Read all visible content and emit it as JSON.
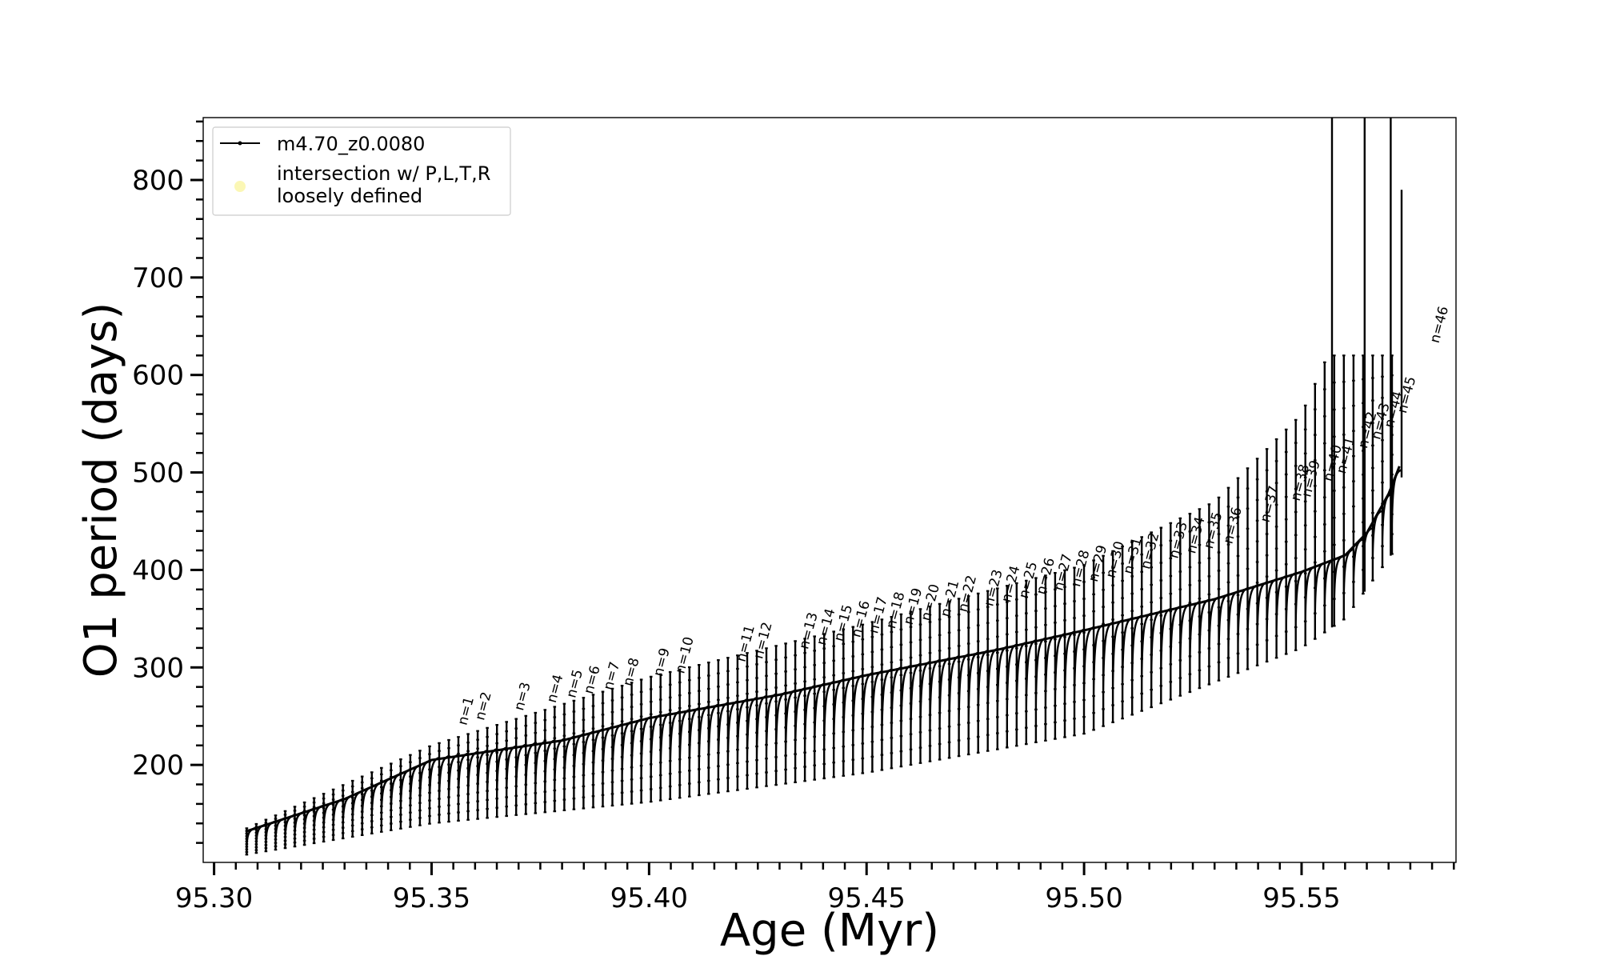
{
  "chart_data": {
    "type": "line",
    "title": "",
    "xlabel": "Age (Myr)",
    "ylabel": "O1 period (days)",
    "xlim": [
      95.2975,
      95.5855
    ],
    "ylim": [
      100,
      864
    ],
    "x_ticks": [
      "95.30",
      "95.35",
      "95.40",
      "95.45",
      "95.50",
      "95.55"
    ],
    "x_tick_values": [
      95.3,
      95.35,
      95.4,
      95.45,
      95.5,
      95.55
    ],
    "x_minor_step": 0.005,
    "y_ticks": [
      "200",
      "300",
      "400",
      "500",
      "600",
      "700",
      "800"
    ],
    "y_tick_values": [
      200,
      300,
      400,
      500,
      600,
      700,
      800
    ],
    "y_minor_step": 20,
    "grid": false,
    "legend": {
      "position": "top-left",
      "entries": [
        {
          "label": "m4.70_z0.0080",
          "marker": "line-with-dot",
          "color": "#000000"
        },
        {
          "label_lines": [
            "intersection w/ P,L,T,R",
            "loosely defined"
          ],
          "marker": "circle",
          "color": "#fbf7b5"
        }
      ]
    },
    "series": [
      {
        "name": "m4.70_z0.0080",
        "color": "#000000",
        "x_start": 95.3075,
        "x_end": 95.573,
        "base_points": [
          {
            "x": 95.3075,
            "y": 132
          },
          {
            "x": 95.33,
            "y": 165
          },
          {
            "x": 95.35,
            "y": 205
          },
          {
            "x": 95.38,
            "y": 225
          },
          {
            "x": 95.4,
            "y": 248
          },
          {
            "x": 95.43,
            "y": 272
          },
          {
            "x": 95.45,
            "y": 292
          },
          {
            "x": 95.48,
            "y": 318
          },
          {
            "x": 95.5,
            "y": 338
          },
          {
            "x": 95.53,
            "y": 370
          },
          {
            "x": 95.55,
            "y": 398
          },
          {
            "x": 95.56,
            "y": 415
          },
          {
            "x": 95.565,
            "y": 438
          },
          {
            "x": 95.57,
            "y": 478
          },
          {
            "x": 95.573,
            "y": 512
          }
        ],
        "trough_points": [
          {
            "x": 95.3075,
            "y": 108
          },
          {
            "x": 95.35,
            "y": 140
          },
          {
            "x": 95.4,
            "y": 162
          },
          {
            "x": 95.45,
            "y": 192
          },
          {
            "x": 95.5,
            "y": 232
          },
          {
            "x": 95.55,
            "y": 320
          },
          {
            "x": 95.56,
            "y": 350
          },
          {
            "x": 95.573,
            "y": 430
          }
        ],
        "peak_points": [
          {
            "x": 95.3075,
            "y": 135
          },
          {
            "x": 95.35,
            "y": 220
          },
          {
            "x": 95.4,
            "y": 290
          },
          {
            "x": 95.45,
            "y": 345
          },
          {
            "x": 95.5,
            "y": 405
          },
          {
            "x": 95.53,
            "y": 470
          },
          {
            "x": 95.55,
            "y": 560
          },
          {
            "x": 95.556,
            "y": 620
          }
        ],
        "pulse_count": 120,
        "off_scale_spikes": [
          {
            "x": 95.557,
            "y": 864
          },
          {
            "x": 95.5645,
            "y": 864
          },
          {
            "x": 95.5705,
            "y": 864
          }
        ],
        "end_spike": {
          "x": 95.573,
          "y_from": 495,
          "y_to": 790
        }
      }
    ],
    "annotations": [
      {
        "text": "n=1",
        "x": 95.358,
        "y": 240
      },
      {
        "text": "n=2",
        "x": 95.362,
        "y": 245
      },
      {
        "text": "n=3",
        "x": 95.371,
        "y": 255
      },
      {
        "text": "n=4",
        "x": 95.3785,
        "y": 263
      },
      {
        "text": "n=5",
        "x": 95.383,
        "y": 268
      },
      {
        "text": "n=6",
        "x": 95.387,
        "y": 272
      },
      {
        "text": "n=7",
        "x": 95.3915,
        "y": 276
      },
      {
        "text": "n=8",
        "x": 95.396,
        "y": 280
      },
      {
        "text": "n=9",
        "x": 95.403,
        "y": 290
      },
      {
        "text": "n=10",
        "x": 95.408,
        "y": 293
      },
      {
        "text": "n=11",
        "x": 95.422,
        "y": 305
      },
      {
        "text": "n=12",
        "x": 95.426,
        "y": 308
      },
      {
        "text": "n=13",
        "x": 95.4365,
        "y": 318
      },
      {
        "text": "n=14",
        "x": 95.4405,
        "y": 322
      },
      {
        "text": "n=15",
        "x": 95.4445,
        "y": 326
      },
      {
        "text": "n=16",
        "x": 95.4485,
        "y": 330
      },
      {
        "text": "n=17",
        "x": 95.4525,
        "y": 334
      },
      {
        "text": "n=18",
        "x": 95.4565,
        "y": 339
      },
      {
        "text": "n=19",
        "x": 95.4605,
        "y": 343
      },
      {
        "text": "n=20",
        "x": 95.4645,
        "y": 347
      },
      {
        "text": "n=21",
        "x": 95.469,
        "y": 351
      },
      {
        "text": "n=22",
        "x": 95.473,
        "y": 356
      },
      {
        "text": "n=23",
        "x": 95.479,
        "y": 362
      },
      {
        "text": "n=24",
        "x": 95.483,
        "y": 366
      },
      {
        "text": "n=25",
        "x": 95.487,
        "y": 370
      },
      {
        "text": "n=26",
        "x": 95.491,
        "y": 374
      },
      {
        "text": "n=27",
        "x": 95.495,
        "y": 378
      },
      {
        "text": "n=28",
        "x": 95.499,
        "y": 382
      },
      {
        "text": "n=29",
        "x": 95.503,
        "y": 387
      },
      {
        "text": "n=30",
        "x": 95.507,
        "y": 391
      },
      {
        "text": "n=31",
        "x": 95.511,
        "y": 395
      },
      {
        "text": "n=32",
        "x": 95.515,
        "y": 400
      },
      {
        "text": "n=33",
        "x": 95.5215,
        "y": 411
      },
      {
        "text": "n=34",
        "x": 95.5255,
        "y": 416
      },
      {
        "text": "n=35",
        "x": 95.5295,
        "y": 421
      },
      {
        "text": "n=36",
        "x": 95.534,
        "y": 426
      },
      {
        "text": "n=37",
        "x": 95.5425,
        "y": 448
      },
      {
        "text": "n=38",
        "x": 95.5495,
        "y": 470
      },
      {
        "text": "n=39",
        "x": 95.552,
        "y": 474
      },
      {
        "text": "n=40",
        "x": 95.557,
        "y": 490
      },
      {
        "text": "n=41",
        "x": 95.56,
        "y": 498
      },
      {
        "text": "n=42",
        "x": 95.565,
        "y": 524
      },
      {
        "text": "n=43",
        "x": 95.568,
        "y": 533
      },
      {
        "text": "n=44",
        "x": 95.571,
        "y": 545
      },
      {
        "text": "n=45",
        "x": 95.574,
        "y": 560
      },
      {
        "text": "n=46",
        "x": 95.5815,
        "y": 632
      }
    ]
  }
}
